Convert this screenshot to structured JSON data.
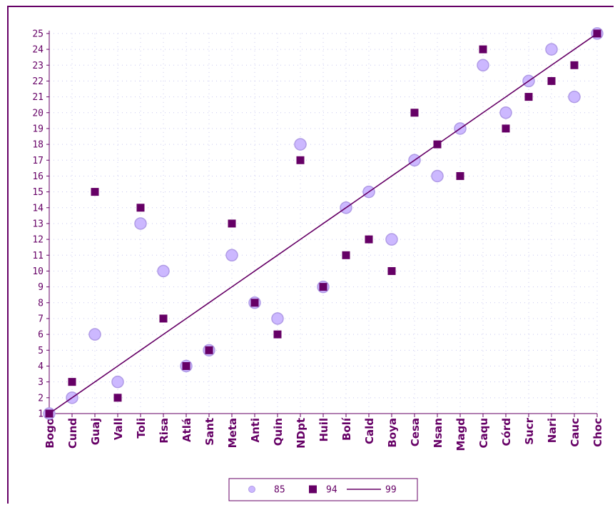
{
  "chart_data": {
    "type": "scatter",
    "title": "",
    "xlabel": "",
    "ylabel": "",
    "categories": [
      "Bogo",
      "Cund",
      "Guaj",
      "Vall",
      "Toli",
      "Risa",
      "Atlá",
      "Sant",
      "Meta",
      "Anti",
      "Quin",
      "NDpt",
      "Huil",
      "Bolí",
      "Cald",
      "Boya",
      "Cesa",
      "Nsan",
      "Magd",
      "Caqu",
      "Córd",
      "Sucr",
      "Nari",
      "Cauc",
      "Choc"
    ],
    "ylim": [
      1,
      25
    ],
    "yticks": [
      1,
      2,
      3,
      4,
      5,
      6,
      7,
      8,
      9,
      10,
      11,
      12,
      13,
      14,
      15,
      16,
      17,
      18,
      19,
      20,
      21,
      22,
      23,
      24,
      25
    ],
    "grid": true,
    "legend_position": "bottom",
    "series": [
      {
        "name": "85",
        "marker": "circle",
        "color": "#ccb8ff",
        "stroke": "#b09be6",
        "values": [
          1,
          2,
          6,
          3,
          13,
          10,
          4,
          5,
          11,
          8,
          7,
          18,
          9,
          14,
          15,
          12,
          17,
          16,
          19,
          23,
          20,
          22,
          24,
          21,
          25
        ]
      },
      {
        "name": "94",
        "marker": "square",
        "color": "#660066",
        "values": [
          1,
          3,
          15,
          2,
          14,
          7,
          4,
          5,
          13,
          8,
          6,
          17,
          9,
          11,
          12,
          10,
          20,
          18,
          16,
          24,
          19,
          21,
          22,
          23,
          25
        ]
      },
      {
        "name": "99",
        "marker": "line",
        "color": "#660066",
        "values": [
          1,
          2,
          3,
          4,
          5,
          6,
          7,
          8,
          9,
          10,
          11,
          12,
          13,
          14,
          15,
          16,
          17,
          18,
          19,
          20,
          21,
          22,
          23,
          24,
          25
        ]
      }
    ],
    "colors": {
      "axis": "#660066",
      "grid": "#c8c8f0",
      "text": "#660066"
    }
  }
}
